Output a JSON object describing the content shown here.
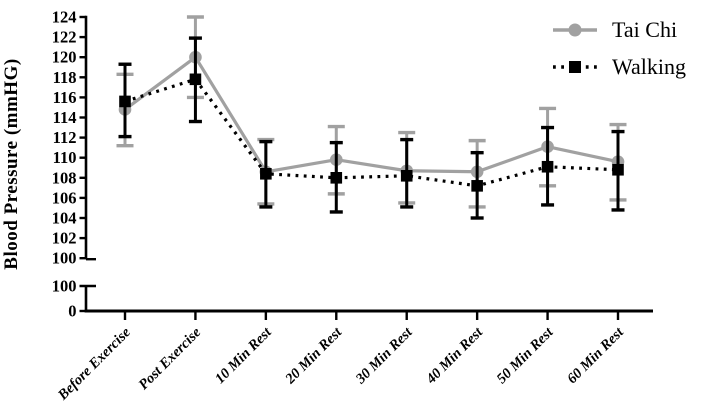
{
  "figure": {
    "background": "#ffffff"
  },
  "chart_data": {
    "type": "line",
    "title": "",
    "xlabel": "",
    "ylabel": "Blood Pressure (mmHG)",
    "categories": [
      "Before Exercise",
      "Post Exercise",
      "10 Min Rest",
      "20 Min Rest",
      "30 Min Rest",
      "40 Min Rest",
      "50 Min Rest",
      "60 Min Rest"
    ],
    "y_axis": {
      "main_range": [
        100,
        124
      ],
      "main_tick_labels": [
        "124",
        "122",
        "120",
        "118",
        "116",
        "114",
        "112",
        "110",
        "108",
        "106",
        "104",
        "102",
        "100"
      ],
      "axis_break": true,
      "break_tick_labels": [
        "100",
        "0"
      ],
      "grid": false
    },
    "series": [
      {
        "name": "Tai Chi",
        "color": "#a1a1a1",
        "marker": "circle",
        "line_style": "solid",
        "values": [
          114.8,
          120.0,
          108.6,
          109.8,
          108.7,
          108.6,
          111.1,
          109.6
        ],
        "err_low": [
          111.2,
          116.0,
          105.4,
          106.4,
          105.5,
          105.1,
          107.2,
          105.8
        ],
        "err_high": [
          118.3,
          124.0,
          111.8,
          113.1,
          112.5,
          111.7,
          114.9,
          113.3
        ]
      },
      {
        "name": "Walking",
        "color": "#000000",
        "marker": "square",
        "line_style": "dotted",
        "values": [
          115.6,
          117.8,
          108.4,
          108.0,
          108.2,
          107.2,
          109.1,
          108.8
        ],
        "err_low": [
          112.1,
          113.6,
          105.1,
          104.6,
          105.1,
          104.0,
          105.3,
          104.8
        ],
        "err_high": [
          119.3,
          121.9,
          111.6,
          111.5,
          111.8,
          110.5,
          113.0,
          112.6
        ]
      }
    ],
    "legend": {
      "position": "top-right"
    }
  }
}
